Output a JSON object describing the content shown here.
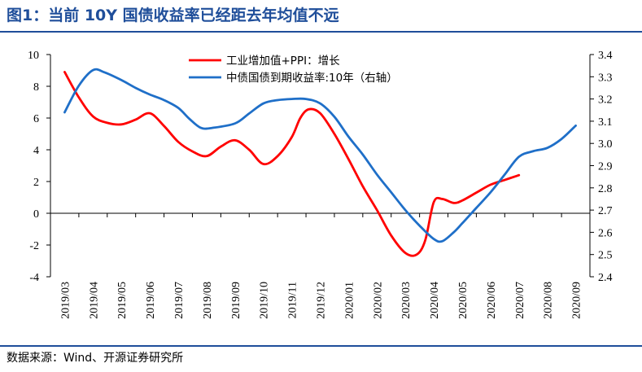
{
  "header": {
    "title": "图1：当前 10Y 国债收益率已经距去年均值不远"
  },
  "footer": {
    "source": "数据来源：Wind、开源证券研究所"
  },
  "chart_data": {
    "type": "line",
    "categories": [
      "2019/03",
      "2019/04",
      "2019/05",
      "2019/06",
      "2019/07",
      "2019/08",
      "2019/09",
      "2019/10",
      "2019/11",
      "2019/12",
      "2020/01",
      "2020/02",
      "2020/03",
      "2020/04",
      "2020/05",
      "2020/06",
      "2020/07",
      "2020/08",
      "2020/09"
    ],
    "y_left": {
      "min": -4,
      "max": 10,
      "step": 2,
      "ticks": [
        "-4",
        "-2",
        "0",
        "2",
        "4",
        "6",
        "8",
        "10"
      ]
    },
    "y_right": {
      "min": 2.4,
      "max": 3.4,
      "step": 0.1,
      "ticks": [
        "2.4",
        "2.5",
        "2.6",
        "2.7",
        "2.8",
        "2.9",
        "3.0",
        "3.1",
        "3.2",
        "3.3",
        "3.4"
      ]
    },
    "legend_position": "top-center",
    "grid": false,
    "series": [
      {
        "name": "工业增加值+PPI：增长",
        "axis": "left",
        "color": "#ff0000",
        "points": [
          [
            0,
            8.9
          ],
          [
            0.5,
            7.3
          ],
          [
            1,
            6.1
          ],
          [
            1.5,
            5.7
          ],
          [
            2,
            5.6
          ],
          [
            2.5,
            5.9
          ],
          [
            3,
            6.3
          ],
          [
            3.5,
            5.5
          ],
          [
            4,
            4.5
          ],
          [
            4.5,
            3.9
          ],
          [
            5,
            3.6
          ],
          [
            5.5,
            4.2
          ],
          [
            6,
            4.6
          ],
          [
            6.5,
            4.0
          ],
          [
            7,
            3.1
          ],
          [
            7.5,
            3.6
          ],
          [
            8,
            4.8
          ],
          [
            8.3,
            6.0
          ],
          [
            8.6,
            6.55
          ],
          [
            9,
            6.3
          ],
          [
            9.5,
            5.0
          ],
          [
            10,
            3.4
          ],
          [
            10.5,
            1.7
          ],
          [
            11,
            0.2
          ],
          [
            11.5,
            -1.4
          ],
          [
            12,
            -2.5
          ],
          [
            12.4,
            -2.6
          ],
          [
            12.7,
            -1.7
          ],
          [
            13,
            0.7
          ],
          [
            13.3,
            0.9
          ],
          [
            13.7,
            0.65
          ],
          [
            14,
            0.8
          ],
          [
            14.5,
            1.3
          ],
          [
            15,
            1.8
          ],
          [
            15.5,
            2.1
          ],
          [
            16,
            2.4
          ]
        ]
      },
      {
        "name": "中债国债到期收益率:10年（右轴）",
        "axis": "right",
        "color": "#1f6fc8",
        "points": [
          [
            0,
            3.14
          ],
          [
            0.5,
            3.26
          ],
          [
            1,
            3.33
          ],
          [
            1.4,
            3.32
          ],
          [
            2,
            3.285
          ],
          [
            2.5,
            3.25
          ],
          [
            3,
            3.22
          ],
          [
            3.5,
            3.195
          ],
          [
            4,
            3.16
          ],
          [
            4.4,
            3.11
          ],
          [
            4.8,
            3.07
          ],
          [
            5.2,
            3.07
          ],
          [
            6,
            3.09
          ],
          [
            6.5,
            3.135
          ],
          [
            7,
            3.18
          ],
          [
            7.5,
            3.195
          ],
          [
            8,
            3.2
          ],
          [
            8.5,
            3.2
          ],
          [
            9,
            3.18
          ],
          [
            9.5,
            3.12
          ],
          [
            10,
            3.03
          ],
          [
            10.5,
            2.95
          ],
          [
            11,
            2.86
          ],
          [
            11.5,
            2.78
          ],
          [
            12,
            2.7
          ],
          [
            12.5,
            2.63
          ],
          [
            13,
            2.57
          ],
          [
            13.3,
            2.56
          ],
          [
            13.7,
            2.6
          ],
          [
            14,
            2.64
          ],
          [
            14.5,
            2.71
          ],
          [
            15,
            2.78
          ],
          [
            15.5,
            2.86
          ],
          [
            16,
            2.94
          ],
          [
            16.5,
            2.965
          ],
          [
            17,
            2.98
          ],
          [
            17.5,
            3.02
          ],
          [
            18,
            3.08
          ]
        ]
      }
    ]
  }
}
